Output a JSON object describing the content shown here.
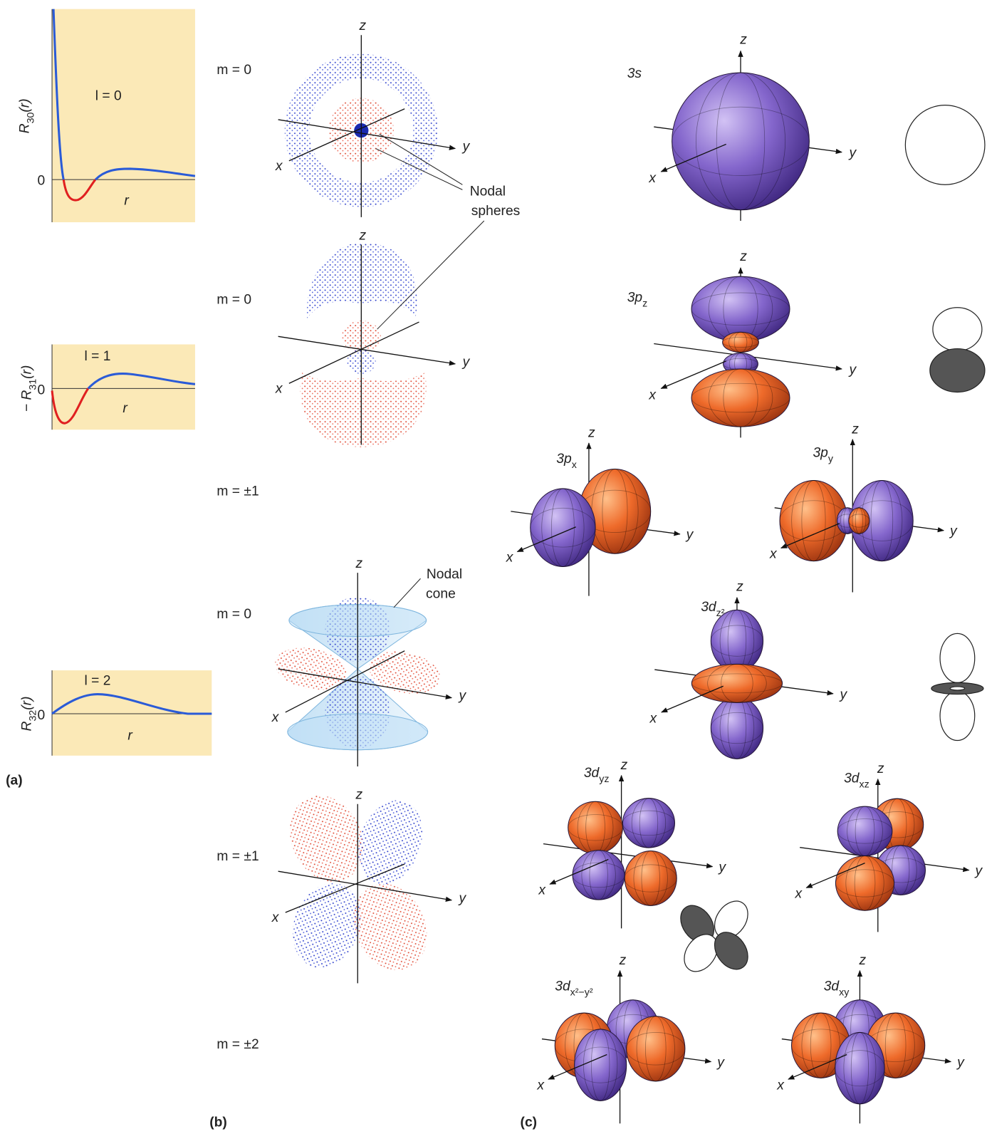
{
  "axis_labels": {
    "x": "x",
    "y": "y",
    "z": "z"
  },
  "panel_a": {
    "label": "(a)",
    "plots": [
      {
        "y_label": {
          "base": "R",
          "sub": "30",
          "tail": "(r)"
        },
        "l_label": "l = 0",
        "zero_tick": "0",
        "x_label": "r"
      },
      {
        "y_label": {
          "base": "− R",
          "sub": "31",
          "tail": "(r)"
        },
        "l_label": "l = 1",
        "zero_tick": "0",
        "x_label": "r"
      },
      {
        "y_label": {
          "base": "R",
          "sub": "32",
          "tail": "(r)"
        },
        "l_label": "l = 2",
        "zero_tick": "0",
        "x_label": "r"
      }
    ]
  },
  "panel_b": {
    "label": "(b)",
    "m_labels": [
      "m = 0",
      "m = 0",
      "m = ±1",
      "m = 0",
      "m = ±1",
      "m = ±2"
    ],
    "annotations": [
      {
        "lines": [
          "Nodal",
          "spheres"
        ]
      },
      {
        "lines": [
          "Nodal",
          "cone"
        ]
      }
    ]
  },
  "panel_c": {
    "label": "(c)",
    "orbitals": [
      {
        "base": "3s"
      },
      {
        "base": "3p",
        "sub": "z"
      },
      {
        "base": "3p",
        "sub": "x"
      },
      {
        "base": "3p",
        "sub": "y"
      },
      {
        "base": "3d",
        "sub": "z²"
      },
      {
        "base": "3d",
        "sub": "yz"
      },
      {
        "base": "3d",
        "sub": "xz"
      },
      {
        "base": "3d",
        "sub": "x²−y²"
      },
      {
        "base": "3d",
        "sub": "xy"
      }
    ]
  }
}
